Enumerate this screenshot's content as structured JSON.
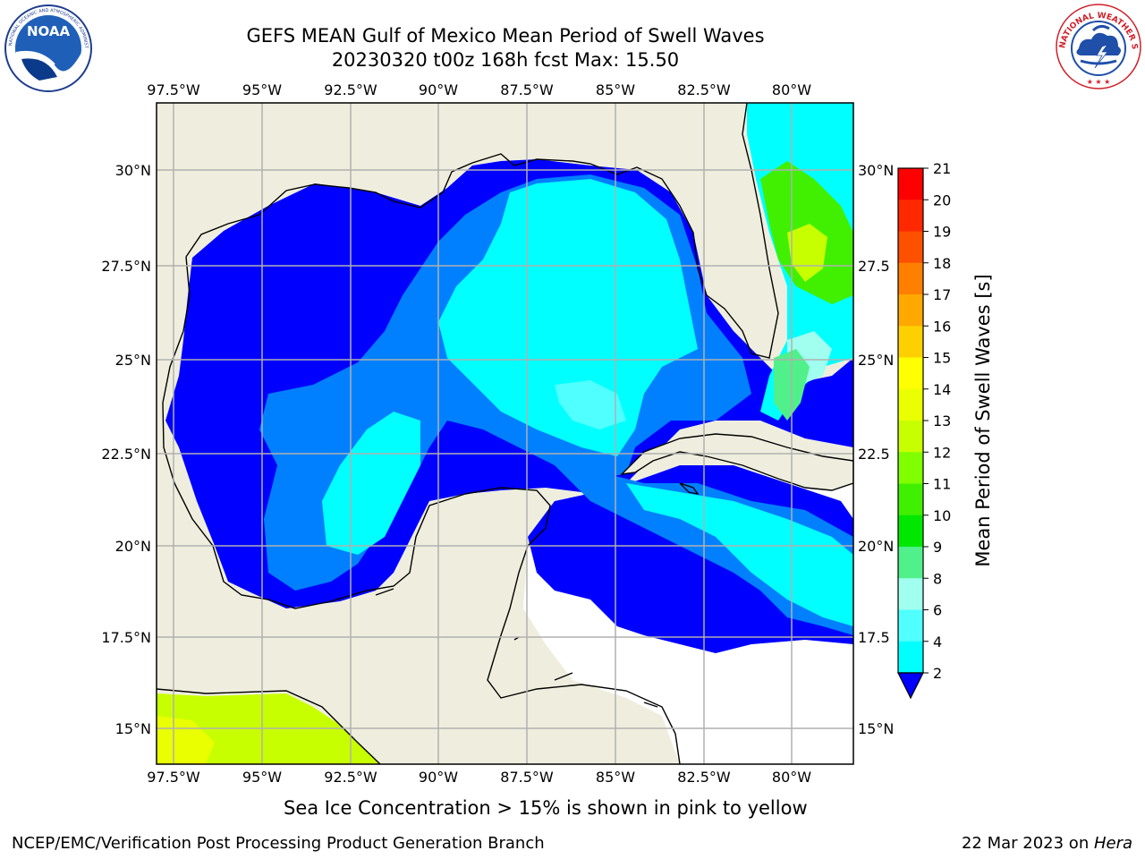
{
  "title": {
    "line1": "GEFS MEAN Gulf of Mexico Mean Period of Swell Waves",
    "line2": "20230320 t00z 168h fcst   Max: 15.50"
  },
  "logos": {
    "left": "noaa-logo",
    "left_text": "NOAA",
    "left_ring_text": "NATIONAL OCEANIC AND ATMOSPHERIC ADMINISTRATION · U.S. DEPARTMENT OF COMMERCE",
    "right": "nws-logo",
    "right_ring_text": "NATIONAL WEATHER SERVICE"
  },
  "map": {
    "lon_ticks": [
      "97.5°W",
      "95°W",
      "92.5°W",
      "90°W",
      "87.5°W",
      "85°W",
      "82.5°W",
      "80°W"
    ],
    "lat_ticks_left": [
      "30°N",
      "27.5°N",
      "25°N",
      "22.5°N",
      "20°N",
      "17.5°N",
      "15°N"
    ],
    "lat_ticks_right": [
      "30°N",
      "27.5",
      "25°N",
      "22.5",
      "20°N",
      "17.5",
      "15°N"
    ],
    "colors": {
      "land": "#efeede",
      "grid": "#b0b0b0",
      "no_data": "#ffffff"
    }
  },
  "colorbar": {
    "label": "Mean Period of Swell Waves [s]",
    "ticks": [
      "21",
      "20",
      "19",
      "18",
      "17",
      "16",
      "15",
      "14",
      "13",
      "12",
      "11",
      "10",
      "9",
      "8",
      "6",
      "4",
      "2"
    ],
    "colors": [
      "#ff0000",
      "#ff2800",
      "#ff5000",
      "#ff8000",
      "#ffa800",
      "#ffd000",
      "#ffff00",
      "#eaff00",
      "#c8ff00",
      "#80ff00",
      "#40f000",
      "#00e800",
      "#50f08a",
      "#a0ffee",
      "#50ffff",
      "#00ffff",
      "#0080ff",
      "#0000ff"
    ]
  },
  "footnote": "Sea Ice Concentration > 15% is shown in pink to yellow",
  "credits": {
    "left": "NCEP/EMC/Verification Post Processing Product Generation Branch",
    "right_date": "22 Mar 2023 on ",
    "right_host": "Hera"
  }
}
